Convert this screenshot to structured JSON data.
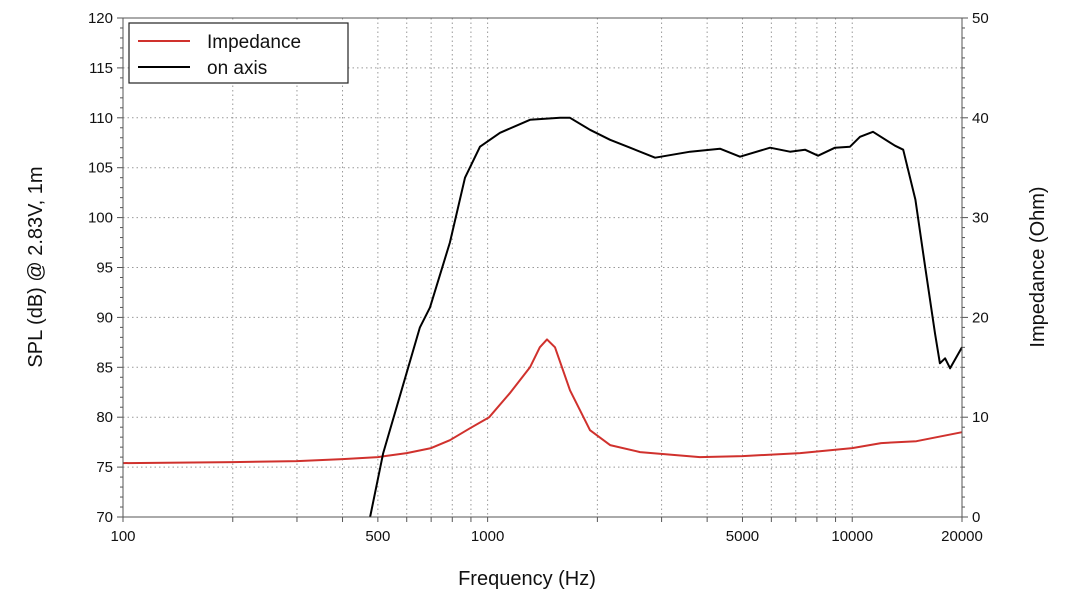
{
  "chart_data": {
    "type": "line",
    "title": "",
    "xlabel": "Frequency (Hz)",
    "ylabel": "SPL (dB) @ 2.83V, 1m",
    "y2label": "Impedance (Ohm)",
    "xscale": "log",
    "xlim": [
      100,
      20000
    ],
    "ylim": [
      70,
      120
    ],
    "y2lim": [
      0,
      50
    ],
    "x_ticks": [
      100,
      500,
      1000,
      5000,
      10000,
      20000
    ],
    "x_tick_labels": [
      "100",
      "500",
      "1000",
      "5000",
      "10000",
      "20000"
    ],
    "y_ticks": [
      70,
      75,
      80,
      85,
      90,
      95,
      100,
      105,
      110,
      115,
      120
    ],
    "y_tick_labels": [
      "70",
      "75",
      "80",
      "85",
      "90",
      "95",
      "100",
      "105",
      "110",
      "115",
      "120"
    ],
    "y2_ticks": [
      0,
      10,
      20,
      30,
      40,
      50
    ],
    "y2_tick_labels": [
      "0",
      "10",
      "20",
      "30",
      "40",
      "50"
    ],
    "grid": true,
    "legend_position": "top-left",
    "series": [
      {
        "name": "Impedance",
        "axis": "right",
        "color": "#d0312d",
        "x": [
          100,
          200,
          300,
          400,
          500,
          600,
          700,
          788,
          895,
          1010,
          1150,
          1307,
          1390,
          1455,
          1530,
          1682,
          1909,
          2167,
          2620,
          3820,
          5000,
          7200,
          10000,
          12000,
          15000,
          20000
        ],
        "y": [
          5.4,
          5.5,
          5.6,
          5.8,
          6.0,
          6.4,
          6.9,
          7.7,
          8.9,
          10.0,
          12.4,
          15.0,
          17.0,
          17.8,
          17.0,
          12.7,
          8.7,
          7.2,
          6.5,
          6.0,
          6.1,
          6.4,
          6.9,
          7.4,
          7.6,
          8.5
        ]
      },
      {
        "name": "on axis",
        "axis": "left",
        "color": "#000000",
        "x": [
          476,
          517,
          652,
          695,
          788,
          867,
          953,
          1081,
          1307,
          1580,
          1682,
          1909,
          2167,
          2459,
          2880,
          3591,
          4339,
          4921,
          5953,
          6750,
          7420,
          8060,
          8970,
          9860,
          10500,
          11400,
          13100,
          13800,
          14900,
          15840,
          16870,
          17400,
          17980,
          18550,
          20000
        ],
        "y": [
          70,
          76.4,
          89,
          91,
          97.5,
          104,
          107.1,
          108.5,
          109.8,
          110,
          110,
          108.8,
          107.8,
          107,
          106,
          106.6,
          106.9,
          106.1,
          107,
          106.6,
          106.8,
          106.2,
          107,
          107.1,
          108.1,
          108.6,
          107.2,
          106.8,
          101.8,
          95.1,
          88.4,
          85.4,
          85.9,
          84.9,
          87
        ]
      }
    ]
  }
}
